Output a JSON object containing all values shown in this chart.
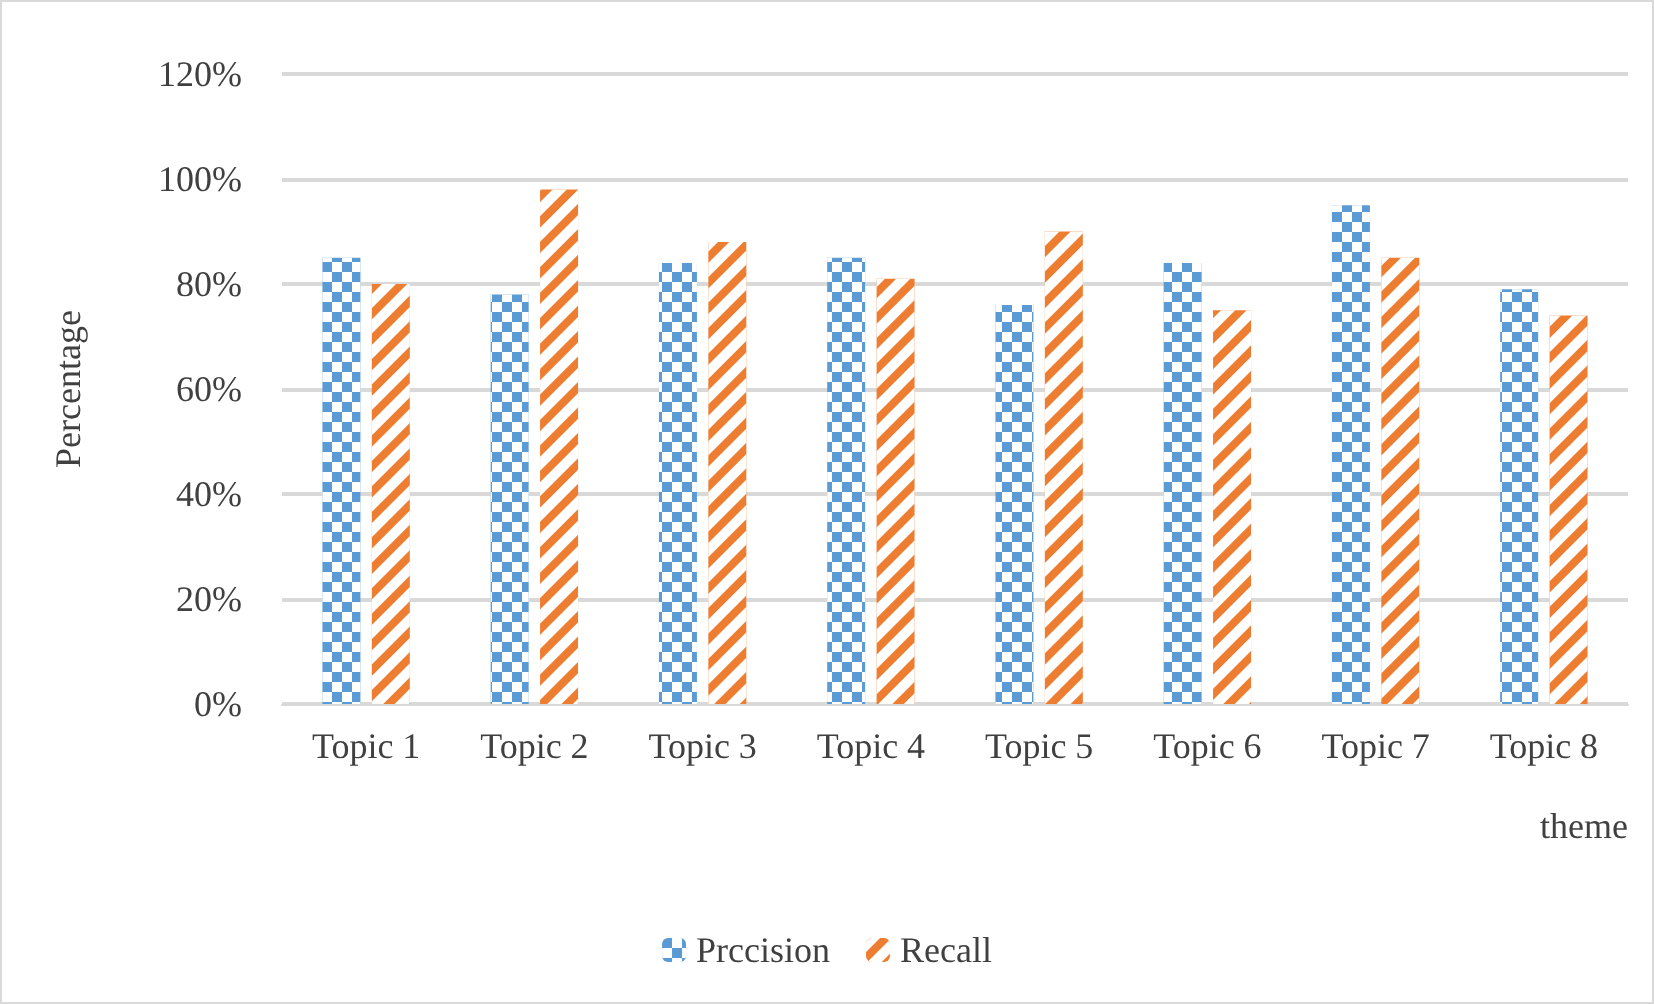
{
  "chart_data": {
    "type": "bar",
    "xlabel": "theme",
    "ylabel": "Percentage",
    "categories": [
      "Topic 1",
      "Topic 2",
      "Topic 3",
      "Topic 4",
      "Topic 5",
      "Topic 6",
      "Topic 7",
      "Topic 8"
    ],
    "series": [
      {
        "name": "Prccision",
        "color": "#5b9bd5",
        "values": [
          85,
          78,
          84,
          85,
          76,
          84,
          95,
          79
        ]
      },
      {
        "name": "Recall",
        "color": "#ed7d31",
        "values": [
          80,
          98,
          88,
          81,
          90,
          75,
          85,
          74
        ]
      }
    ],
    "ylim": [
      0,
      120
    ],
    "yticks": [
      {
        "value": 0,
        "label": "0%"
      },
      {
        "value": 20,
        "label": "20%"
      },
      {
        "value": 40,
        "label": "40%"
      },
      {
        "value": 60,
        "label": "60%"
      },
      {
        "value": 80,
        "label": "80%"
      },
      {
        "value": 100,
        "label": "100%"
      },
      {
        "value": 120,
        "label": "120%"
      }
    ],
    "grid": "y",
    "legend": "bottom"
  }
}
